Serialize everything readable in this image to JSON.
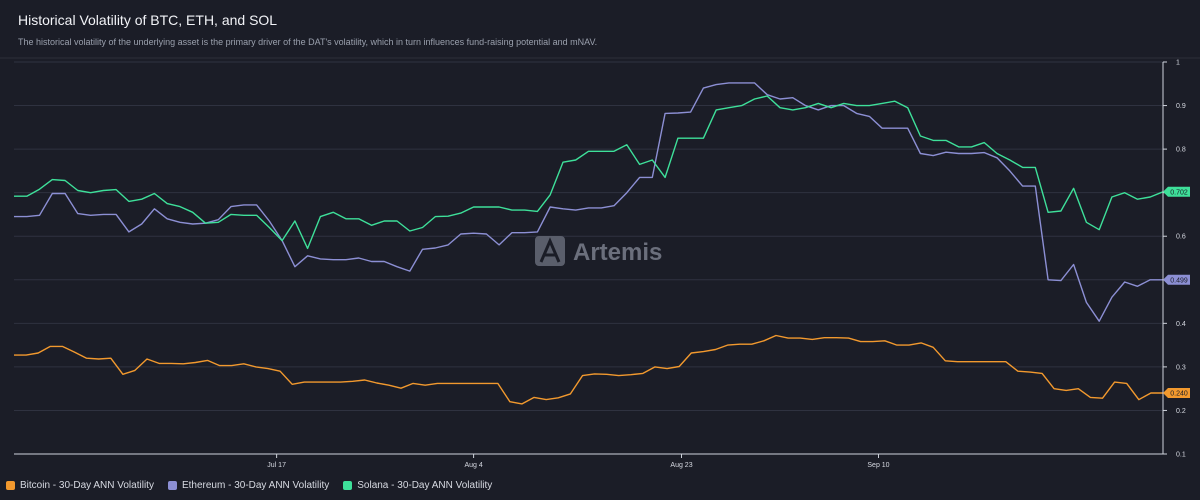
{
  "header": {
    "title": "Historical Volatility of BTC, ETH, and SOL",
    "subtitle": "The historical volatility of the underlying asset is the primary driver of the DAT's volatility, which in turn influences fund-raising potential and mNAV."
  },
  "watermark": {
    "text": "Artemis",
    "icon": "artemis-logo-icon"
  },
  "chart_data": {
    "type": "line",
    "title": "Historical Volatility of BTC, ETH, and SOL",
    "xlabel": "",
    "ylabel": "",
    "ylim": [
      0.1,
      1
    ],
    "yticks": [
      0.1,
      0.2,
      0.3,
      0.4,
      0.5,
      0.6,
      0.7,
      0.8,
      0.9,
      1
    ],
    "ytick_labels": [
      "0.1",
      "0.2",
      "0.3",
      "0.4",
      "0.5",
      "0.6",
      "0.7",
      "0.8",
      "0.9",
      "1"
    ],
    "x_start": "Jun 23",
    "x_end": "Oct 6",
    "xticks": [
      "Jul 17",
      "Aug 4",
      "Aug 23",
      "Sep 10"
    ],
    "grid": true,
    "legend_position": "bottom-left",
    "series": [
      {
        "name": "Bitcoin - 30-Day ANN Volatility",
        "color": "#f2992e",
        "end_label": "0.240",
        "values": [
          0.327,
          0.327,
          0.332,
          0.347,
          0.347,
          0.334,
          0.32,
          0.318,
          0.32,
          0.283,
          0.292,
          0.318,
          0.308,
          0.308,
          0.307,
          0.31,
          0.315,
          0.303,
          0.303,
          0.307,
          0.3,
          0.296,
          0.29,
          0.26,
          0.265,
          0.265,
          0.265,
          0.265,
          0.267,
          0.27,
          0.263,
          0.258,
          0.251,
          0.262,
          0.258,
          0.262,
          0.262,
          0.262,
          0.262,
          0.262,
          0.262,
          0.22,
          0.215,
          0.23,
          0.225,
          0.229,
          0.238,
          0.28,
          0.284,
          0.283,
          0.28,
          0.282,
          0.285,
          0.3,
          0.296,
          0.301,
          0.332,
          0.335,
          0.34,
          0.35,
          0.352,
          0.352,
          0.36,
          0.372,
          0.366,
          0.366,
          0.363,
          0.367,
          0.367,
          0.366,
          0.358,
          0.358,
          0.36,
          0.35,
          0.35,
          0.355,
          0.345,
          0.314,
          0.312,
          0.312,
          0.312,
          0.312,
          0.312,
          0.29,
          0.288,
          0.285,
          0.25,
          0.246,
          0.25,
          0.23,
          0.228,
          0.265,
          0.262,
          0.225,
          0.24,
          0.24
        ]
      },
      {
        "name": "Ethereum - 30-Day ANN Volatility",
        "color": "#8c8fd4",
        "end_label": "0.499",
        "values": [
          0.645,
          0.645,
          0.648,
          0.698,
          0.698,
          0.652,
          0.648,
          0.65,
          0.65,
          0.61,
          0.628,
          0.663,
          0.64,
          0.632,
          0.628,
          0.63,
          0.638,
          0.668,
          0.672,
          0.672,
          0.635,
          0.59,
          0.53,
          0.555,
          0.548,
          0.546,
          0.546,
          0.55,
          0.542,
          0.542,
          0.53,
          0.52,
          0.57,
          0.573,
          0.58,
          0.605,
          0.607,
          0.605,
          0.58,
          0.608,
          0.608,
          0.61,
          0.667,
          0.663,
          0.66,
          0.665,
          0.665,
          0.67,
          0.7,
          0.735,
          0.735,
          0.882,
          0.883,
          0.885,
          0.94,
          0.948,
          0.952,
          0.952,
          0.952,
          0.925,
          0.915,
          0.918,
          0.9,
          0.89,
          0.9,
          0.9,
          0.882,
          0.875,
          0.848,
          0.848,
          0.848,
          0.79,
          0.785,
          0.793,
          0.79,
          0.79,
          0.792,
          0.78,
          0.75,
          0.715,
          0.715,
          0.5,
          0.498,
          0.535,
          0.448,
          0.405,
          0.46,
          0.495,
          0.485,
          0.5,
          0.5
        ]
      },
      {
        "name": "Solana - 30-Day ANN Volatility",
        "color": "#3ee09a",
        "end_label": "0.702",
        "values": [
          0.692,
          0.692,
          0.708,
          0.73,
          0.728,
          0.705,
          0.7,
          0.705,
          0.707,
          0.68,
          0.685,
          0.698,
          0.675,
          0.668,
          0.655,
          0.63,
          0.632,
          0.65,
          0.648,
          0.648,
          0.62,
          0.59,
          0.635,
          0.572,
          0.645,
          0.655,
          0.64,
          0.64,
          0.625,
          0.635,
          0.635,
          0.612,
          0.62,
          0.645,
          0.646,
          0.653,
          0.667,
          0.667,
          0.667,
          0.66,
          0.66,
          0.657,
          0.695,
          0.77,
          0.775,
          0.795,
          0.795,
          0.795,
          0.81,
          0.765,
          0.775,
          0.735,
          0.825,
          0.825,
          0.825,
          0.89,
          0.895,
          0.9,
          0.915,
          0.922,
          0.895,
          0.89,
          0.895,
          0.905,
          0.895,
          0.905,
          0.9,
          0.9,
          0.905,
          0.91,
          0.895,
          0.83,
          0.82,
          0.82,
          0.805,
          0.805,
          0.815,
          0.79,
          0.775,
          0.758,
          0.758,
          0.655,
          0.658,
          0.71,
          0.632,
          0.615,
          0.69,
          0.7,
          0.685,
          0.69,
          0.702
        ]
      }
    ]
  },
  "legend": {
    "items": [
      {
        "label": "Bitcoin - 30-Day ANN Volatility",
        "color": "#f2992e"
      },
      {
        "label": "Ethereum - 30-Day ANN Volatility",
        "color": "#8c8fd4"
      },
      {
        "label": "Solana - 30-Day ANN Volatility",
        "color": "#3ee09a"
      }
    ]
  }
}
